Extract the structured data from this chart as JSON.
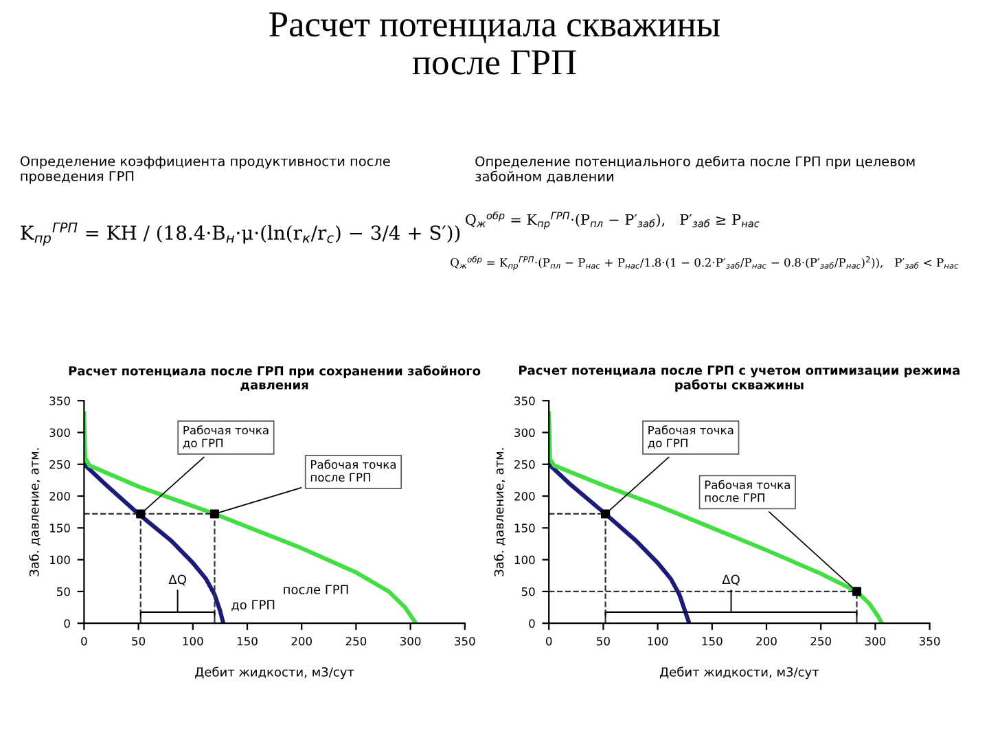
{
  "chart_data": [
    {
      "type": "other",
      "title": "Расчет потенциала скважины\nпосле ГРП",
      "annotations": [
        "Определение коэффициента продуктивности после\nпроведения ГРП",
        "K$_{пр}$$^{ГРП}$ = KH / (18.4·B$_{н}$·μ·(ln(r$_{к}$/r$_{с}$) − 3/4 + S′))",
        "Определение потенциального дебита после ГРП при целевом\nзабойном давлении",
        "Q$_{ж}$$^{обр}$ = K$_{пр}$$^{ГРП}$·(P$_{пл}$ − P′$_{заб}$),   P′$_{заб}$ ≥ P$_{нас}$",
        "Q$_{ж}$$^{обр}$ = K$_{пр}$$^{ГРП}$·(P$_{пл}$ − P$_{нас}$ + P$_{нас}$/1.8·(1 − 0.2·P′$_{заб}$/P$_{нас}$ − 0.8·(P′$_{заб}$/P$_{нас}$)$^{2}$)),   P′$_{заб}$ < P$_{нас}$"
      ]
    },
    {
      "type": "line",
      "title": "Расчет потенциала после ГРП при сохранении забойного\nдавления",
      "xlabel": "Дебит жидкости, м3/сут",
      "ylabel": "Заб. давление, атм.",
      "xlim": [
        0,
        350
      ],
      "ylim": [
        0,
        350
      ],
      "xticks": [
        0,
        50,
        100,
        150,
        200,
        250,
        300,
        350
      ],
      "yticks": [
        0,
        50,
        100,
        150,
        200,
        250,
        300,
        350
      ],
      "grid": false,
      "legend": false,
      "series": [
        {
          "name": "до ГРП",
          "color": "#1c1c78",
          "x": [
            0,
            20,
            50,
            80,
            100,
            112,
            120,
            125,
            128
          ],
          "values": [
            250,
            218,
            172,
            130,
            95,
            70,
            45,
            20,
            0
          ]
        },
        {
          "name": "после ГРП",
          "color": "#44dd44",
          "x": [
            0,
            1,
            5,
            50,
            120,
            200,
            250,
            280,
            295,
            303,
            305
          ],
          "values": [
            330,
            260,
            248,
            215,
            172,
            118,
            80,
            50,
            25,
            5,
            0
          ]
        },
        {
          "type": "scatter",
          "color": "#000000",
          "marker": "square",
          "x": [
            52,
            120
          ],
          "values": [
            172,
            172
          ]
        },
        {
          "type": "line",
          "color": "#333333",
          "line_style": "dashed",
          "x": [
            0,
            120
          ],
          "values": [
            172,
            172
          ]
        },
        {
          "type": "line",
          "color": "#333333",
          "line_style": "dashed",
          "x": [
            52,
            52
          ],
          "values": [
            0,
            172
          ]
        },
        {
          "type": "line",
          "color": "#333333",
          "line_style": "dashed",
          "x": [
            120,
            120
          ],
          "values": [
            0,
            172
          ]
        }
      ],
      "annotations": [
        {
          "text": "Рабочая точка\nдо ГРП",
          "x": 52,
          "y": 172
        },
        {
          "text": "Рабочая точка\nпосле ГРП",
          "x": 120,
          "y": 172
        },
        "ΔQ"
      ]
    },
    {
      "type": "line",
      "title": "Расчет потенциала после ГРП с учетом оптимизации режима\nработы скважины",
      "xlabel": "Дебит жидкости, м3/сут",
      "ylabel": "Заб. давление, атм.",
      "xlim": [
        0,
        350
      ],
      "ylim": [
        0,
        350
      ],
      "xticks": [
        0,
        50,
        100,
        150,
        200,
        250,
        300,
        350
      ],
      "yticks": [
        0,
        50,
        100,
        150,
        200,
        250,
        300,
        350
      ],
      "grid": false,
      "legend": false,
      "series": [
        {
          "color": "#1c1c78",
          "x": [
            0,
            20,
            52,
            80,
            100,
            112,
            120,
            125,
            129
          ],
          "values": [
            250,
            218,
            172,
            130,
            95,
            70,
            45,
            20,
            0
          ]
        },
        {
          "color": "#44dd44",
          "x": [
            0,
            1,
            5,
            50,
            100,
            150,
            200,
            250,
            283,
            295,
            303,
            306
          ],
          "values": [
            330,
            258,
            248,
            217,
            185,
            150,
            115,
            78,
            50,
            30,
            10,
            0
          ]
        },
        {
          "type": "scatter",
          "color": "#000000",
          "marker": "square",
          "x": [
            52,
            283
          ],
          "values": [
            172,
            50
          ]
        },
        {
          "type": "line",
          "color": "#333333",
          "line_style": "dashed",
          "x": [
            0,
            52
          ],
          "values": [
            172,
            172
          ]
        },
        {
          "type": "line",
          "color": "#333333",
          "line_style": "dashed",
          "x": [
            52,
            52
          ],
          "values": [
            0,
            172
          ]
        },
        {
          "type": "line",
          "color": "#333333",
          "line_style": "dashed",
          "x": [
            0,
            283
          ],
          "values": [
            50,
            50
          ]
        },
        {
          "type": "line",
          "color": "#333333",
          "line_style": "dashed",
          "x": [
            283,
            283
          ],
          "values": [
            0,
            50
          ]
        }
      ],
      "annotations": [
        {
          "text": "Рабочая точка\nдо ГРП",
          "x": 52,
          "y": 172
        },
        {
          "text": "Рабочая точка\nпосле ГРП",
          "x": 283,
          "y": 50
        },
        "ΔQ"
      ]
    }
  ]
}
